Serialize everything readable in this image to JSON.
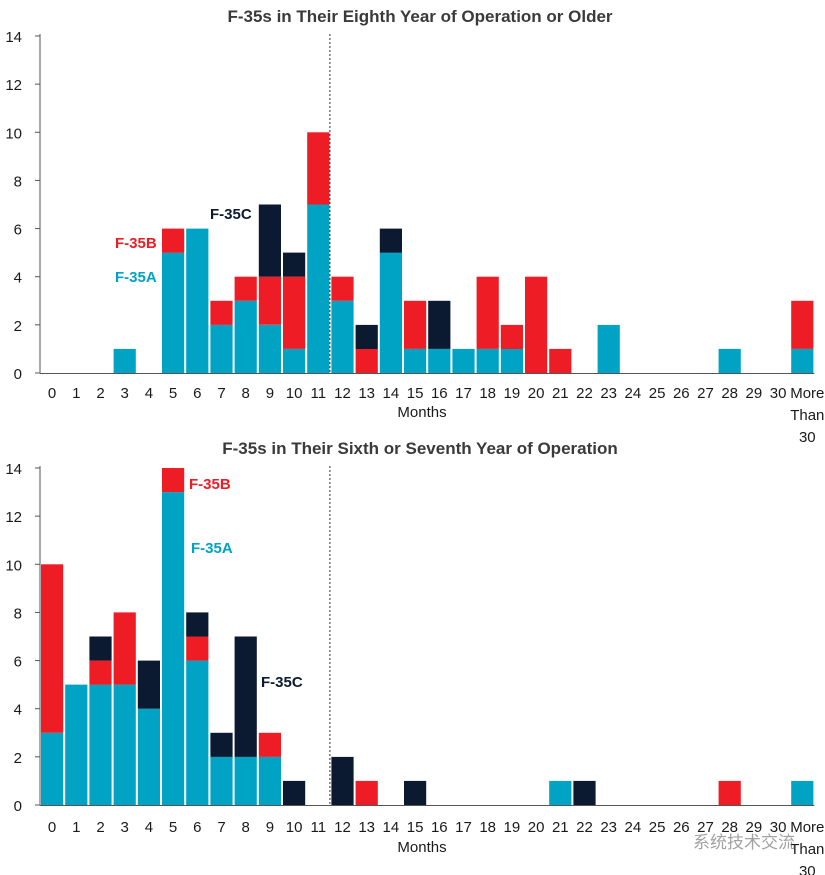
{
  "colors": {
    "F-35A": "#00a3c4",
    "F-35B": "#ee1c25",
    "F-35C": "#0b1a30",
    "axis": "#555555"
  },
  "watermark": "系统技术交流",
  "chart_data": [
    {
      "type": "bar",
      "stacked": true,
      "title": "F-35s in Their Eighth Year of Operation or Older",
      "xlabel": "Months",
      "ylabel": "",
      "ylim": [
        0,
        14
      ],
      "yticks": [
        0,
        2,
        4,
        6,
        8,
        10,
        12,
        14
      ],
      "categories": [
        "0",
        "1",
        "2",
        "3",
        "4",
        "5",
        "6",
        "7",
        "8",
        "9",
        "10",
        "11",
        "12",
        "13",
        "14",
        "15",
        "16",
        "17",
        "18",
        "19",
        "20",
        "21",
        "22",
        "23",
        "24",
        "25",
        "26",
        "27",
        "28",
        "29",
        "30",
        "More Than 30"
      ],
      "category_lines": [
        [
          "0"
        ],
        [
          "1"
        ],
        [
          "2"
        ],
        [
          "3"
        ],
        [
          "4"
        ],
        [
          "5"
        ],
        [
          "6"
        ],
        [
          "7"
        ],
        [
          "8"
        ],
        [
          "9"
        ],
        [
          "10"
        ],
        [
          "11"
        ],
        [
          "12"
        ],
        [
          "13"
        ],
        [
          "14"
        ],
        [
          "15"
        ],
        [
          "16"
        ],
        [
          "17"
        ],
        [
          "18"
        ],
        [
          "19"
        ],
        [
          "20"
        ],
        [
          "21"
        ],
        [
          "22"
        ],
        [
          "23"
        ],
        [
          "24"
        ],
        [
          "25"
        ],
        [
          "26"
        ],
        [
          "27"
        ],
        [
          "28"
        ],
        [
          "29"
        ],
        [
          "30"
        ],
        [
          "More",
          "Than",
          "30"
        ]
      ],
      "series": [
        {
          "name": "F-35A",
          "values": [
            0,
            0,
            0,
            1,
            0,
            5,
            6,
            2,
            3,
            2,
            1,
            7,
            3,
            0,
            5,
            1,
            1,
            1,
            1,
            1,
            0,
            0,
            0,
            2,
            0,
            0,
            0,
            0,
            1,
            0,
            0,
            1
          ]
        },
        {
          "name": "F-35B",
          "values": [
            0,
            0,
            0,
            0,
            0,
            1,
            0,
            1,
            1,
            2,
            3,
            3,
            1,
            1,
            0,
            2,
            0,
            0,
            3,
            1,
            4,
            1,
            0,
            0,
            0,
            0,
            0,
            0,
            0,
            0,
            0,
            2
          ]
        },
        {
          "name": "F-35C",
          "values": [
            0,
            0,
            0,
            0,
            0,
            0,
            0,
            0,
            0,
            3,
            1,
            0,
            0,
            1,
            1,
            0,
            2,
            0,
            0,
            0,
            0,
            0,
            0,
            0,
            0,
            0,
            0,
            0,
            0,
            0,
            0,
            0
          ]
        }
      ],
      "reference_line_after_category": "11",
      "legend": [
        {
          "label": "F-35C",
          "series": "F-35C"
        },
        {
          "label": "F-35B",
          "series": "F-35B"
        },
        {
          "label": "F-35A",
          "series": "F-35A"
        }
      ]
    },
    {
      "type": "bar",
      "stacked": true,
      "title": "F-35s in Their Sixth or Seventh Year of Operation",
      "xlabel": "Months",
      "ylabel": "",
      "ylim": [
        0,
        14
      ],
      "yticks": [
        0,
        2,
        4,
        6,
        8,
        10,
        12,
        14
      ],
      "categories": [
        "0",
        "1",
        "2",
        "3",
        "4",
        "5",
        "6",
        "7",
        "8",
        "9",
        "10",
        "11",
        "12",
        "13",
        "14",
        "15",
        "16",
        "17",
        "18",
        "19",
        "20",
        "21",
        "22",
        "23",
        "24",
        "25",
        "26",
        "27",
        "28",
        "29",
        "30",
        "More Than 30"
      ],
      "category_lines": [
        [
          "0"
        ],
        [
          "1"
        ],
        [
          "2"
        ],
        [
          "3"
        ],
        [
          "4"
        ],
        [
          "5"
        ],
        [
          "6"
        ],
        [
          "7"
        ],
        [
          "8"
        ],
        [
          "9"
        ],
        [
          "10"
        ],
        [
          "11"
        ],
        [
          "12"
        ],
        [
          "13"
        ],
        [
          "14"
        ],
        [
          "15"
        ],
        [
          "16"
        ],
        [
          "17"
        ],
        [
          "18"
        ],
        [
          "19"
        ],
        [
          "20"
        ],
        [
          "21"
        ],
        [
          "22"
        ],
        [
          "23"
        ],
        [
          "24"
        ],
        [
          "25"
        ],
        [
          "26"
        ],
        [
          "27"
        ],
        [
          "28"
        ],
        [
          "29"
        ],
        [
          "30"
        ],
        [
          "More",
          "Than",
          "30"
        ]
      ],
      "series": [
        {
          "name": "F-35A",
          "values": [
            3,
            5,
            5,
            5,
            4,
            13,
            6,
            2,
            2,
            2,
            0,
            0,
            0,
            0,
            0,
            0,
            0,
            0,
            0,
            0,
            0,
            1,
            0,
            0,
            0,
            0,
            0,
            0,
            0,
            0,
            0,
            1
          ]
        },
        {
          "name": "F-35B",
          "values": [
            7,
            0,
            1,
            3,
            0,
            1,
            1,
            0,
            0,
            1,
            0,
            0,
            0,
            1,
            0,
            0,
            0,
            0,
            0,
            0,
            0,
            0,
            0,
            0,
            0,
            0,
            0,
            0,
            1,
            0,
            0,
            0
          ]
        },
        {
          "name": "F-35C",
          "values": [
            0,
            0,
            1,
            0,
            2,
            0,
            1,
            1,
            5,
            0,
            1,
            0,
            2,
            0,
            0,
            1,
            0,
            0,
            0,
            0,
            0,
            0,
            1,
            0,
            0,
            0,
            0,
            0,
            0,
            0,
            0,
            0
          ]
        }
      ],
      "reference_line_after_category": "11",
      "legend": [
        {
          "label": "F-35B",
          "series": "F-35B"
        },
        {
          "label": "F-35A",
          "series": "F-35A"
        },
        {
          "label": "F-35C",
          "series": "F-35C"
        }
      ]
    }
  ]
}
